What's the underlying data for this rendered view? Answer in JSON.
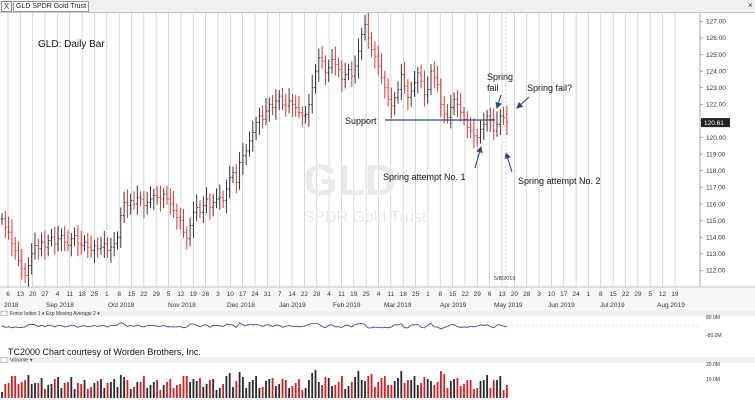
{
  "header": {
    "checkbox": "X",
    "instrument_label": "GLD SPDR Gold Trust",
    "close_glyph": "×"
  },
  "annotations": {
    "title": "GLD:  Daily Bar",
    "watermark_symbol": "GLD",
    "watermark_name": "SPDR Gold Trust",
    "support": "Support",
    "spring_fail_line1": "Spring",
    "spring_fail_line2": "fail",
    "spring_fail_q": "Spring fail?",
    "spring_attempt_1": "Spring attempt No. 1",
    "spring_attempt_2": "Spring attempt No. 2",
    "current_date": "5/8/2019",
    "credit": "TC2000 Chart courtesy of Worden Brothers, Inc."
  },
  "panels": {
    "force_index_label": "Force Index 1 ▾ Exp Moving Average 2 ▾",
    "force_index_top": "80.0M",
    "force_index_bottom": "-80.0M",
    "volume_label": "Volume ▾",
    "volume_top": "20.0M",
    "volume_bottom": "10.0M"
  },
  "colors": {
    "up_bar": "#1f1f1f",
    "down_bar": "#d81e1e",
    "annotation_line": "#2b4a7a",
    "arrow": "#2b4a7a",
    "grid": "#c8c8c8",
    "force_line": "#2c3e8c",
    "volume_up": "#2a2a2a",
    "volume_down": "#d81e1e"
  },
  "chart_data": {
    "type": "ohlc",
    "ylim": [
      111,
      127.5
    ],
    "y_ticks": [
      "112.00",
      "113.00",
      "114.00",
      "115.00",
      "116.00",
      "117.00",
      "118.00",
      "119.00",
      "120.00",
      "121.00",
      "122.00",
      "123.00",
      "124.00",
      "125.00",
      "126.00",
      "127.00"
    ],
    "last_price_label": "120.61",
    "x_day_labels": [
      "6",
      "13",
      "20",
      "27",
      "4",
      "11",
      "18",
      "25",
      "1",
      "8",
      "15",
      "22",
      "29",
      "5",
      "12",
      "19",
      "26",
      "3",
      "10",
      "17",
      "24",
      "31",
      "7",
      "14",
      "22",
      "28",
      "4",
      "11",
      "19",
      "25",
      "4",
      "11",
      "18",
      "25",
      "1",
      "8",
      "15",
      "22",
      "29",
      "6",
      "13",
      "20",
      "28",
      "3",
      "10",
      "17",
      "24",
      "1",
      "8",
      "15",
      "22",
      "29",
      "5",
      "12",
      "19"
    ],
    "x_month_labels": [
      "2018",
      "Sep 2018",
      "Oct 2018",
      "Nov 2018",
      "Dec 2018",
      "Jan 2019",
      "Feb 2019",
      "Mar 2019",
      "Apr 2019",
      "May 2019",
      "Jun 2019",
      "Jul 2019",
      "Aug 2019"
    ],
    "closes": [
      115.1,
      114.6,
      114.3,
      113.6,
      113.2,
      112.6,
      112.1,
      111.7,
      112.3,
      113.0,
      113.5,
      113.3,
      113.7,
      113.4,
      113.8,
      114.0,
      113.6,
      113.9,
      114.1,
      113.7,
      113.5,
      113.9,
      114.1,
      113.6,
      113.5,
      113.7,
      113.4,
      113.2,
      113.5,
      113.3,
      113.4,
      113.6,
      113.2,
      113.4,
      113.6,
      114.0,
      115.3,
      116.1,
      115.9,
      116.2,
      116.0,
      116.4,
      116.3,
      115.9,
      116.1,
      116.3,
      116.5,
      116.4,
      116.3,
      116.6,
      116.3,
      116.0,
      115.6,
      115.2,
      115.0,
      114.3,
      113.9,
      114.7,
      115.5,
      115.8,
      115.5,
      115.9,
      116.3,
      115.8,
      116.1,
      116.3,
      116.4,
      116.2,
      116.9,
      117.6,
      117.9,
      117.3,
      118.5,
      118.9,
      119.2,
      119.8,
      120.3,
      120.9,
      121.3,
      121.1,
      121.6,
      122.0,
      121.8,
      122.2,
      122.5,
      122.0,
      121.9,
      122.2,
      122.0,
      121.8,
      121.5,
      121.3,
      121.4,
      122.0,
      123.0,
      124.0,
      124.8,
      124.6,
      123.9,
      124.2,
      124.7,
      124.4,
      124.1,
      123.5,
      123.8,
      124.1,
      123.7,
      124.3,
      125.2,
      126.2,
      126.8,
      126.0,
      125.3,
      124.9,
      124.3,
      123.6,
      123.0,
      122.3,
      121.9,
      122.4,
      122.9,
      123.8,
      123.1,
      122.4,
      122.8,
      123.3,
      123.9,
      123.4,
      122.6,
      122.9,
      124.0,
      123.6,
      123.2,
      122.0,
      121.4,
      121.2,
      121.8,
      122.3,
      122.0,
      121.5,
      121.1,
      120.6,
      120.4,
      120.1,
      120.0,
      120.5,
      120.8,
      121.3,
      121.1,
      120.4,
      120.8,
      121.3,
      121.2,
      120.9
    ]
  }
}
